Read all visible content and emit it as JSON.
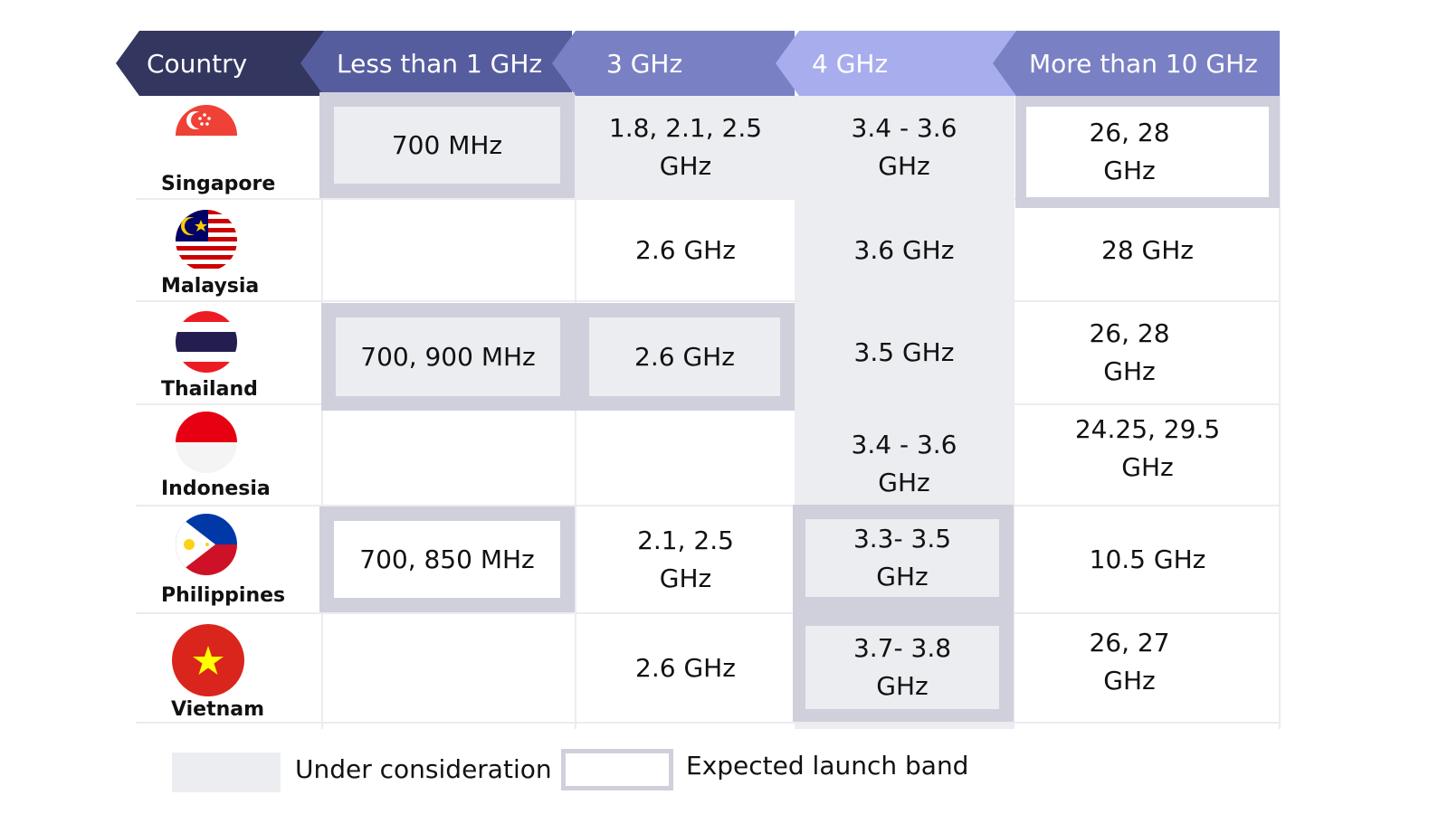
{
  "chart_data": {
    "type": "table",
    "columns": [
      "Country",
      "Less than 1 GHz",
      "3 GHz",
      "4 GHz",
      "More than 10 GHz"
    ],
    "rows": [
      {
        "country": "Singapore",
        "cells": [
          "700 MHz",
          "1.8, 2.1, 2.5 GHz",
          "3.4 - 3.6 GHz",
          "26, 28 GHz"
        ]
      },
      {
        "country": "Malaysia",
        "cells": [
          "",
          "2.6 GHz",
          "3.6 GHz",
          "28 GHz"
        ]
      },
      {
        "country": "Thailand",
        "cells": [
          "700, 900 MHz",
          "2.6 GHz",
          "3.5 GHz",
          "26, 28 GHz"
        ]
      },
      {
        "country": "Indonesia",
        "cells": [
          "",
          "",
          "3.4 - 3.6 GHz",
          "24.25, 29.5 GHz"
        ]
      },
      {
        "country": "Philippines",
        "cells": [
          "700, 850 MHz",
          "2.1, 2.5 GHz",
          "3.3- 3.5 GHz",
          "10.5 GHz"
        ]
      },
      {
        "country": "Vietnam",
        "cells": [
          "",
          "2.6 GHz",
          "3.7- 3.8 GHz",
          "26, 27 GHz"
        ]
      }
    ],
    "legend": [
      "Under consideration",
      "Expected launch band"
    ]
  },
  "colors": {
    "header_dark": "#33365e",
    "header_mid": "#565d9f",
    "header_light": "#7980c4",
    "header_pale": "#a8adee",
    "under_consideration": "#ebedf0",
    "expected_launch_frame": "#cfd0dc"
  }
}
